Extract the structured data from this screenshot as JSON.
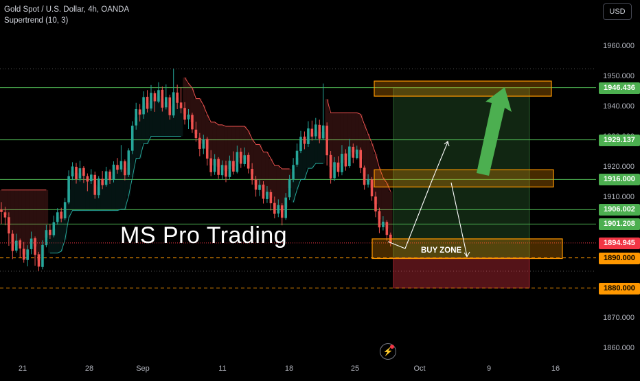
{
  "header": {
    "symbol_line": "Gold Spot / U.S. Dollar, 4h, OANDA",
    "indicator_line": "Supertrend (10, 3)",
    "currency_button": "USD"
  },
  "watermark": "MS Pro Trading",
  "annotations": {
    "buy_zone_label": "BUY ZONE"
  },
  "colors": {
    "background": "#000000",
    "up_candle": "#26a69a",
    "down_candle": "#ef5350",
    "level_line": "#4caf50",
    "zone_border": "#ff9800",
    "target_arrow": "#4caf50",
    "current_price_tag": "#f23645",
    "level_tag": "#4caf50",
    "dashed_level": "#ff9800"
  },
  "chart_data": {
    "type": "candlestick",
    "title": "Gold Spot / U.S. Dollar, 4h, OANDA",
    "indicator": "Supertrend (10, 3)",
    "ylim": [
      1855,
      1972
    ],
    "y_ticks": [
      1860,
      1870,
      1880,
      1890,
      1900,
      1910,
      1920,
      1930,
      1940,
      1950,
      1960
    ],
    "y_tick_labels": [
      "1860.000",
      "1870.000",
      "1880.000",
      "1890.000",
      "1900.000",
      "1910.000",
      "1920.000",
      "1930.000",
      "1940.000",
      "1950.000",
      "1960.000"
    ],
    "x_tick_labels": [
      "21",
      "28",
      "Sep",
      "11",
      "18",
      "25",
      "Oct",
      "9",
      "16"
    ],
    "current_price": 1894.945,
    "current_price_label": "1894.945",
    "levels": [
      {
        "value": 1946.436,
        "label": "1946.436",
        "style": "solid"
      },
      {
        "value": 1929.137,
        "label": "1929.137",
        "style": "solid"
      },
      {
        "value": 1916.0,
        "label": "1916.000",
        "style": "solid"
      },
      {
        "value": 1906.002,
        "label": "1906.002",
        "style": "solid"
      },
      {
        "value": 1901.208,
        "label": "1901.208",
        "style": "solid"
      },
      {
        "value": 1890.0,
        "label": "1890.000",
        "style": "dashed"
      },
      {
        "value": 1880.0,
        "label": "1880.000",
        "style": "dashed"
      }
    ],
    "zones": [
      {
        "name": "target",
        "top": 1948.6,
        "bottom": 1943.6
      },
      {
        "name": "mid",
        "top": 1919.2,
        "bottom": 1913.5
      },
      {
        "name": "buy",
        "top": 1896.3,
        "bottom": 1889.8
      }
    ],
    "position": {
      "entry": 1890.0,
      "target": 1946.4,
      "stop": 1880.0
    },
    "candles": [
      [
        1906.0,
        1905.2,
        1908.5,
        1901.2
      ],
      [
        1905.1,
        1903.4,
        1906.9,
        1900.8
      ],
      [
        1903.5,
        1898.1,
        1905.1,
        1894.0
      ],
      [
        1898.0,
        1892.3,
        1899.2,
        1889.6
      ],
      [
        1892.4,
        1895.7,
        1898.0,
        1891.7
      ],
      [
        1895.8,
        1893.1,
        1896.4,
        1890.2
      ],
      [
        1893.0,
        1889.4,
        1895.3,
        1888.4
      ],
      [
        1889.3,
        1892.8,
        1894.2,
        1887.2
      ],
      [
        1892.9,
        1896.4,
        1898.7,
        1891.2
      ],
      [
        1896.5,
        1891.0,
        1897.1,
        1887.4
      ],
      [
        1891.2,
        1887.1,
        1892.0,
        1885.6
      ],
      [
        1887.0,
        1894.3,
        1895.8,
        1886.2
      ],
      [
        1894.2,
        1899.2,
        1900.9,
        1893.5
      ],
      [
        1899.3,
        1897.6,
        1901.1,
        1896.3
      ],
      [
        1897.5,
        1901.8,
        1904.0,
        1896.8
      ],
      [
        1901.9,
        1905.1,
        1906.5,
        1901.0
      ],
      [
        1905.3,
        1903.0,
        1906.6,
        1901.8
      ],
      [
        1903.1,
        1908.5,
        1909.9,
        1902.5
      ],
      [
        1908.4,
        1917.1,
        1919.0,
        1907.8
      ],
      [
        1917.0,
        1920.3,
        1921.7,
        1915.8
      ],
      [
        1920.2,
        1916.1,
        1921.5,
        1914.6
      ],
      [
        1916.3,
        1919.7,
        1922.2,
        1915.3
      ],
      [
        1919.8,
        1917.2,
        1920.4,
        1914.8
      ],
      [
        1917.1,
        1915.3,
        1918.0,
        1912.1
      ],
      [
        1915.4,
        1917.6,
        1919.4,
        1914.5
      ],
      [
        1917.5,
        1910.9,
        1918.6,
        1909.6
      ],
      [
        1910.8,
        1916.3,
        1917.1,
        1909.8
      ],
      [
        1916.2,
        1914.1,
        1918.8,
        1912.8
      ],
      [
        1914.2,
        1918.7,
        1920.2,
        1913.6
      ],
      [
        1918.6,
        1915.8,
        1919.3,
        1914.5
      ],
      [
        1915.9,
        1920.9,
        1922.0,
        1915.0
      ],
      [
        1920.8,
        1919.2,
        1923.1,
        1917.9
      ],
      [
        1919.3,
        1922.1,
        1927.4,
        1918.5
      ],
      [
        1922.0,
        1917.4,
        1922.6,
        1915.7
      ],
      [
        1917.5,
        1925.6,
        1926.3,
        1916.8
      ],
      [
        1925.5,
        1933.8,
        1935.3,
        1924.4
      ],
      [
        1933.9,
        1939.3,
        1941.4,
        1932.5
      ],
      [
        1939.2,
        1937.5,
        1941.0,
        1935.2
      ],
      [
        1937.6,
        1943.3,
        1945.2,
        1936.1
      ],
      [
        1943.4,
        1939.4,
        1945.6,
        1938.2
      ],
      [
        1939.5,
        1944.7,
        1947.3,
        1938.7
      ],
      [
        1944.6,
        1941.9,
        1945.4,
        1938.4
      ],
      [
        1941.8,
        1945.6,
        1948.2,
        1941.3
      ],
      [
        1945.7,
        1939.8,
        1946.8,
        1938.5
      ],
      [
        1939.9,
        1943.3,
        1947.5,
        1939.2
      ],
      [
        1943.2,
        1937.3,
        1944.1,
        1935.8
      ],
      [
        1937.2,
        1944.9,
        1952.7,
        1936.4
      ],
      [
        1944.8,
        1941.4,
        1947.4,
        1939.3
      ],
      [
        1941.5,
        1939.6,
        1946.6,
        1937.9
      ],
      [
        1939.7,
        1935.8,
        1941.6,
        1934.2
      ],
      [
        1935.9,
        1937.5,
        1939.3,
        1932.7
      ],
      [
        1937.4,
        1932.6,
        1938.1,
        1931.4
      ],
      [
        1932.5,
        1929.7,
        1935.1,
        1928.5
      ],
      [
        1929.8,
        1926.1,
        1931.4,
        1923.7
      ],
      [
        1926.2,
        1929.3,
        1930.8,
        1924.4
      ],
      [
        1929.4,
        1922.9,
        1930.1,
        1920.6
      ],
      [
        1923.0,
        1918.4,
        1925.7,
        1917.1
      ],
      [
        1918.5,
        1922.7,
        1924.4,
        1917.5
      ],
      [
        1922.8,
        1917.5,
        1923.4,
        1916.2
      ],
      [
        1917.4,
        1920.8,
        1922.3,
        1915.9
      ],
      [
        1920.7,
        1916.9,
        1922.2,
        1915.1
      ],
      [
        1916.8,
        1922.2,
        1923.9,
        1916.1
      ],
      [
        1922.1,
        1918.6,
        1925.3,
        1917.6
      ],
      [
        1918.5,
        1925.1,
        1927.2,
        1918.0
      ],
      [
        1925.2,
        1921.2,
        1926.4,
        1919.8
      ],
      [
        1921.1,
        1924.0,
        1926.6,
        1920.3
      ],
      [
        1924.1,
        1919.6,
        1924.9,
        1918.0
      ],
      [
        1919.5,
        1915.8,
        1921.4,
        1914.3
      ],
      [
        1915.9,
        1912.6,
        1917.2,
        1910.3
      ],
      [
        1912.5,
        1914.2,
        1915.8,
        1910.5
      ],
      [
        1914.3,
        1909.6,
        1915.4,
        1908.0
      ],
      [
        1909.5,
        1911.9,
        1913.8,
        1908.2
      ],
      [
        1911.8,
        1908.1,
        1912.6,
        1905.7
      ],
      [
        1908.2,
        1904.6,
        1910.3,
        1903.1
      ],
      [
        1904.7,
        1907.5,
        1909.4,
        1903.5
      ],
      [
        1907.4,
        1903.3,
        1908.1,
        1900.8
      ],
      [
        1903.2,
        1910.0,
        1911.5,
        1902.6
      ],
      [
        1910.1,
        1916.1,
        1917.5,
        1909.2
      ],
      [
        1916.0,
        1920.8,
        1923.1,
        1915.1
      ],
      [
        1920.9,
        1925.5,
        1927.9,
        1920.2
      ],
      [
        1925.4,
        1930.1,
        1932.1,
        1924.7
      ],
      [
        1930.2,
        1927.8,
        1931.9,
        1926.0
      ],
      [
        1927.7,
        1932.9,
        1935.3,
        1926.8
      ],
      [
        1932.8,
        1930.2,
        1935.5,
        1928.9
      ],
      [
        1930.3,
        1934.2,
        1936.4,
        1929.4
      ],
      [
        1934.1,
        1929.5,
        1935.8,
        1928.0
      ],
      [
        1929.6,
        1933.9,
        1947.8,
        1929.1
      ],
      [
        1933.8,
        1924.0,
        1934.9,
        1920.6
      ],
      [
        1924.1,
        1916.3,
        1925.4,
        1914.6
      ],
      [
        1916.4,
        1921.7,
        1923.4,
        1915.4
      ],
      [
        1921.6,
        1918.5,
        1923.7,
        1916.9
      ],
      [
        1918.4,
        1924.5,
        1927.4,
        1917.4
      ],
      [
        1924.6,
        1920.3,
        1926.0,
        1918.9
      ],
      [
        1920.4,
        1926.9,
        1929.4,
        1919.8
      ],
      [
        1926.8,
        1923.2,
        1927.9,
        1921.4
      ],
      [
        1923.1,
        1925.9,
        1927.2,
        1922.6
      ],
      [
        1925.8,
        1919.8,
        1926.6,
        1918.1
      ],
      [
        1919.9,
        1914.2,
        1920.6,
        1912.6
      ],
      [
        1914.3,
        1916.1,
        1917.7,
        1913.3
      ],
      [
        1916.0,
        1910.4,
        1916.8,
        1908.9
      ],
      [
        1910.3,
        1905.4,
        1911.9,
        1903.5
      ],
      [
        1905.5,
        1900.1,
        1906.6,
        1898.2
      ],
      [
        1900.2,
        1902.0,
        1903.8,
        1899.1
      ],
      [
        1901.9,
        1897.6,
        1902.5,
        1895.7
      ],
      [
        1897.7,
        1894.9,
        1898.4,
        1893.8
      ]
    ],
    "supertrend": [
      [
        0,
        null,
        1912.5
      ],
      [
        1,
        null,
        1912.5
      ],
      [
        2,
        null,
        1912.5
      ],
      [
        3,
        null,
        1912.5
      ],
      [
        4,
        null,
        1912.5
      ],
      [
        5,
        null,
        1912.5
      ],
      [
        6,
        null,
        1912.5
      ],
      [
        7,
        null,
        1912.5
      ],
      [
        8,
        null,
        1912.5
      ],
      [
        9,
        null,
        1912.5
      ],
      [
        10,
        null,
        1912.5
      ],
      [
        11,
        null,
        1912.5
      ],
      [
        12,
        null,
        1912.5
      ],
      [
        13,
        1891.6,
        null
      ],
      [
        14,
        1891.6,
        null
      ],
      [
        15,
        1891.6,
        null
      ],
      [
        16,
        1892.2,
        null
      ],
      [
        17,
        1896.0,
        null
      ],
      [
        18,
        1903.3,
        null
      ],
      [
        19,
        1905.7,
        null
      ],
      [
        20,
        1905.7,
        null
      ],
      [
        21,
        1905.7,
        null
      ],
      [
        22,
        1905.7,
        null
      ],
      [
        23,
        1905.7,
        null
      ],
      [
        24,
        1905.7,
        null
      ],
      [
        25,
        1905.7,
        null
      ],
      [
        26,
        1905.7,
        null
      ],
      [
        27,
        1905.7,
        null
      ],
      [
        28,
        1905.7,
        null
      ],
      [
        29,
        1905.7,
        null
      ],
      [
        30,
        1905.7,
        null
      ],
      [
        31,
        1905.7,
        null
      ],
      [
        32,
        1906.1,
        null
      ],
      [
        33,
        1906.1,
        null
      ],
      [
        34,
        1910.5,
        null
      ],
      [
        35,
        1916.7,
        null
      ],
      [
        36,
        1923.0,
        null
      ],
      [
        37,
        1923.0,
        null
      ],
      [
        38,
        1927.8,
        null
      ],
      [
        39,
        1927.8,
        null
      ],
      [
        40,
        1930.3,
        null
      ],
      [
        41,
        1930.3,
        null
      ],
      [
        42,
        1930.3,
        null
      ],
      [
        43,
        1930.3,
        null
      ],
      [
        44,
        1930.3,
        null
      ],
      [
        45,
        1930.3,
        null
      ],
      [
        46,
        1930.3,
        null
      ],
      [
        47,
        1930.3,
        null
      ],
      [
        48,
        1930.3,
        null
      ],
      [
        49,
        null,
        1949.8
      ],
      [
        50,
        null,
        1947.8
      ],
      [
        51,
        null,
        1946.3
      ],
      [
        52,
        null,
        1942.8
      ],
      [
        53,
        null,
        1942.8
      ],
      [
        54,
        null,
        1940.6
      ],
      [
        55,
        null,
        1937.5
      ],
      [
        56,
        null,
        1935.0
      ],
      [
        57,
        null,
        1935.0
      ],
      [
        58,
        null,
        1934.1
      ],
      [
        59,
        null,
        1934.1
      ],
      [
        60,
        null,
        1933.6
      ],
      [
        61,
        null,
        1933.6
      ],
      [
        62,
        null,
        1933.6
      ],
      [
        63,
        null,
        1933.6
      ],
      [
        64,
        null,
        1933.6
      ],
      [
        65,
        null,
        1933.6
      ],
      [
        66,
        null,
        1932.1
      ],
      [
        67,
        null,
        1929.4
      ],
      [
        68,
        null,
        1927.6
      ],
      [
        69,
        null,
        1927.6
      ],
      [
        70,
        null,
        1925.1
      ],
      [
        71,
        null,
        1925.1
      ],
      [
        72,
        null,
        1922.9
      ],
      [
        73,
        null,
        1920.6
      ],
      [
        74,
        null,
        1920.6
      ],
      [
        75,
        null,
        1919.5
      ],
      [
        76,
        null,
        1919.5
      ],
      [
        77,
        null,
        1919.5
      ],
      [
        78,
        1908.4,
        null
      ],
      [
        79,
        1912.6,
        null
      ],
      [
        80,
        1916.0,
        null
      ],
      [
        81,
        1916.0,
        null
      ],
      [
        82,
        1919.7,
        null
      ],
      [
        83,
        1919.7,
        null
      ],
      [
        84,
        1921.3,
        null
      ],
      [
        85,
        1921.3,
        null
      ],
      [
        86,
        1921.3,
        null
      ],
      [
        87,
        null,
        1942.6
      ],
      [
        88,
        null,
        1938.1
      ],
      [
        89,
        null,
        1938.1
      ],
      [
        90,
        null,
        1938.1
      ],
      [
        91,
        null,
        1938.1
      ],
      [
        92,
        null,
        1938.1
      ],
      [
        93,
        null,
        1938.1
      ],
      [
        94,
        null,
        1938.1
      ],
      [
        95,
        null,
        1938.1
      ],
      [
        96,
        null,
        1937.6
      ],
      [
        97,
        null,
        1934.2
      ],
      [
        98,
        null,
        1931.1
      ],
      [
        99,
        null,
        1928.0
      ],
      [
        100,
        null,
        1924.5
      ],
      [
        101,
        null,
        1919.9
      ],
      [
        102,
        null,
        1916.6
      ],
      [
        103,
        null,
        1914.8
      ],
      [
        104,
        null,
        1912.0
      ]
    ]
  }
}
